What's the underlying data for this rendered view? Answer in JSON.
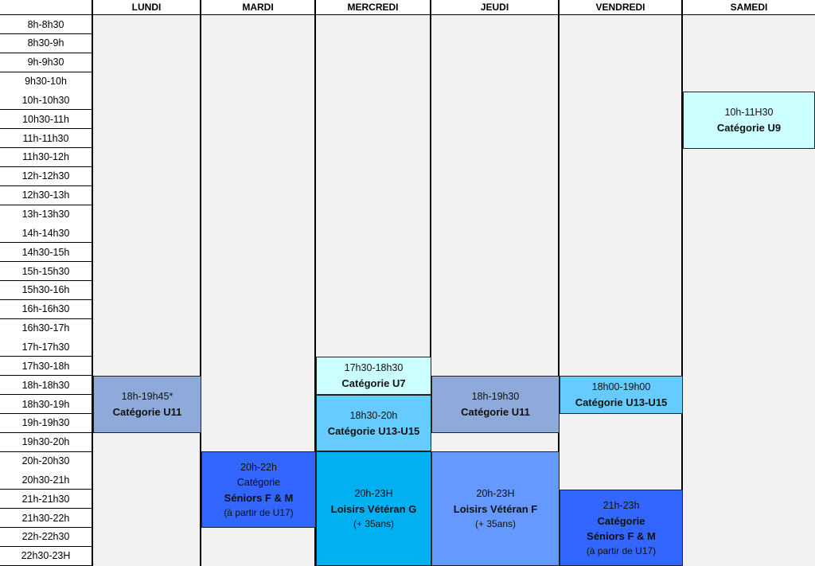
{
  "days": [
    "LUNDI",
    "MARDI",
    "MERCREDI",
    "JEUDI",
    "VENDREDI",
    "SAMEDI"
  ],
  "times": [
    "8h-8h30",
    "8h30-9h",
    "9h-9h30",
    "9h30-10h",
    "10h-10h30",
    "10h30-11h",
    "11h-11h30",
    "11h30-12h",
    "12h-12h30",
    "12h30-13h",
    "13h-13h30",
    "14h-14h30",
    "14h30-15h",
    "15h-15h30",
    "15h30-16h",
    "16h-16h30",
    "16h30-17h",
    "17h-17h30",
    "17h30-18h",
    "18h-18h30",
    "18h30-19h",
    "19h-19h30",
    "19h30-20h",
    "20h-20h30",
    "20h30-21h",
    "21h-21h30",
    "21h30-22h",
    "22h-22h30",
    "22h30-23H"
  ],
  "events": {
    "lundi_u11": {
      "time": "18h-19h45*",
      "cat": "Catégorie U11",
      "color": "#8eaadb"
    },
    "mardi_seniors": {
      "time": "20h-22h",
      "sub": "Catégorie",
      "cat": "Séniors F & M",
      "note": "(à partir de U17)",
      "color": "#3366ff"
    },
    "mercredi_u7": {
      "time": "17h30-18h30",
      "cat": "Catégorie U7",
      "color": "#ccffff"
    },
    "mercredi_u13": {
      "time": "18h30-20h",
      "cat": "Catégorie U13-U15",
      "color": "#66ccff"
    },
    "mercredi_loisirs": {
      "time": "20h-23H",
      "cat": "Loisirs Vétéran G",
      "note": "(+ 35ans)",
      "color": "#00b0f0"
    },
    "jeudi_u11": {
      "time": "18h-19h30",
      "cat": "Catégorie U11",
      "color": "#8eaadb"
    },
    "jeudi_loisirs": {
      "time": "20h-23H",
      "cat": "Loisirs Vétéran F",
      "note": "(+ 35ans)",
      "color": "#6699ff"
    },
    "vendredi_u13": {
      "time": "18h00-19h00",
      "cat": "Catégorie U13-U15",
      "color": "#66ccff"
    },
    "vendredi_seniors": {
      "time": "21h-23h",
      "sub": "Catégorie",
      "cat": "Séniors F & M",
      "note": "(à partir de U17)",
      "color": "#3366ff"
    },
    "samedi_u9": {
      "time": "10h-11H30",
      "cat": "Catégorie U9",
      "color": "#ccffff"
    }
  }
}
